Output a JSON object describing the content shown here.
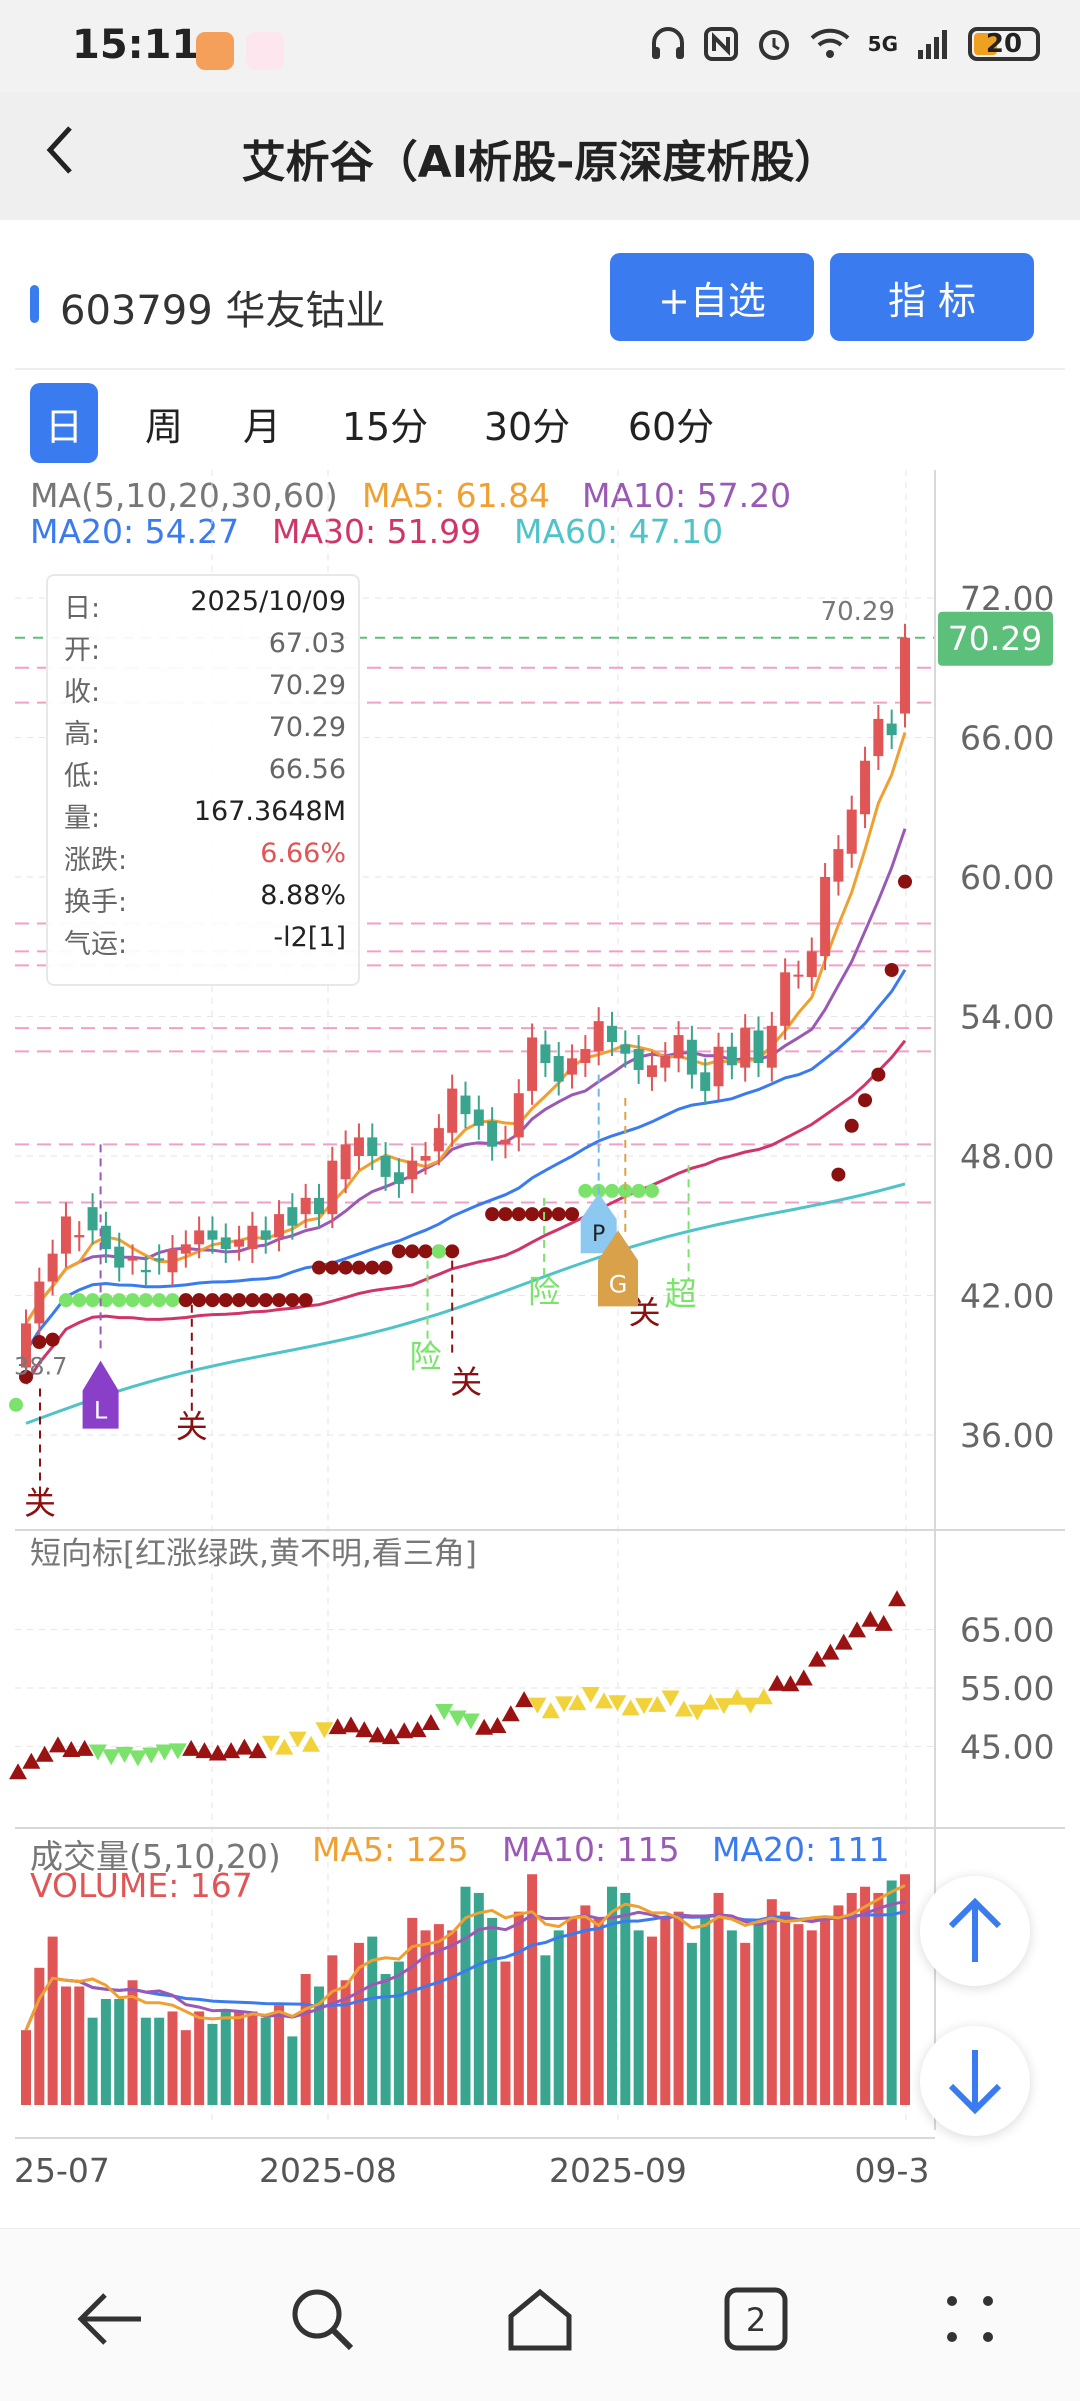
{
  "status": {
    "time": "15:11",
    "network": "5G",
    "battery": "20"
  },
  "header": {
    "back_icon": "chevron-left-icon",
    "title": "艾析谷（AI析股-原深度析股）"
  },
  "stock": {
    "code_name": "603799 华友钴业",
    "add_watch_label": "+自选",
    "indicator_label": "指  标"
  },
  "tabs": [
    {
      "label": "日",
      "active": true
    },
    {
      "label": "周"
    },
    {
      "label": "月"
    },
    {
      "label": "15分"
    },
    {
      "label": "30分"
    },
    {
      "label": "60分"
    }
  ],
  "ma_legend": {
    "title": "MA(5,10,20,30,60)",
    "ma5": "MA5: 61.84",
    "ma10": "MA10: 57.20",
    "ma20": "MA20: 54.27",
    "ma30": "MA30: 51.99",
    "ma60": "MA60: 47.10"
  },
  "tooltip": {
    "date_k": "日:",
    "date_v": "2025/10/09",
    "open_k": "开:",
    "open_v": "67.03",
    "close_k": "收:",
    "close_v": "70.29",
    "high_k": "高:",
    "high_v": "70.29",
    "low_k": "低:",
    "low_v": "66.56",
    "vol_k": "量:",
    "vol_v": "167.3648M",
    "chg_k": "涨跌:",
    "chg_v": "6.66%",
    "turn_k": "换手:",
    "turn_v": "8.88%",
    "luck_k": "气运:",
    "luck_v": "-l2[1]"
  },
  "price_axis": {
    "ticks": [
      "72.00",
      "66.00",
      "60.00",
      "54.00",
      "48.00",
      "42.00",
      "36.00"
    ],
    "last_price": "70.29",
    "last_price_label": "70.29",
    "low_label": "38.7"
  },
  "signals": {
    "guan": "关",
    "xian": "险",
    "chao": "超",
    "L": "L",
    "P": "P",
    "G": "G"
  },
  "short_panel": {
    "title": "短向标[红涨绿跌,黄不明,看三角]",
    "ticks": [
      "65.00",
      "55.00",
      "45.00"
    ]
  },
  "volume_panel": {
    "title": "成交量(5,10,20)",
    "ma5": "MA5: 125",
    "ma10": "MA10: 115",
    "ma20": "MA20: 111",
    "volume": "VOLUME: 167"
  },
  "x_axis": {
    "labels": [
      "25-07",
      "2025-08",
      "2025-09",
      "09-3"
    ]
  },
  "colors": {
    "up": "#e05555",
    "down": "#3aa58f",
    "ma5": "#f0a030",
    "ma10": "#9b59b6",
    "ma20": "#3a7bf0",
    "ma30": "#d0356a",
    "ma60": "#4fc3c8",
    "accent": "#3a7bf0",
    "last_price_bg": "#5cbf7a"
  },
  "chart_data": {
    "type": "candlestick",
    "x": [
      "2025-07-01",
      "2025-07-02",
      "2025-07-03",
      "2025-07-04",
      "2025-07-07",
      "2025-07-08",
      "2025-07-09",
      "2025-07-10",
      "2025-07-11",
      "2025-07-14",
      "2025-07-15",
      "2025-07-16",
      "2025-07-17",
      "2025-07-18",
      "2025-07-21",
      "2025-07-22",
      "2025-07-23",
      "2025-07-24",
      "2025-07-25",
      "2025-07-28",
      "2025-07-29",
      "2025-07-30",
      "2025-07-31",
      "2025-08-01",
      "2025-08-04",
      "2025-08-05",
      "2025-08-06",
      "2025-08-07",
      "2025-08-08",
      "2025-08-11",
      "2025-08-12",
      "2025-08-13",
      "2025-08-14",
      "2025-08-15",
      "2025-08-18",
      "2025-08-19",
      "2025-08-20",
      "2025-08-21",
      "2025-08-22",
      "2025-08-25",
      "2025-08-26",
      "2025-08-27",
      "2025-08-28",
      "2025-08-29",
      "2025-09-01",
      "2025-09-02",
      "2025-09-03",
      "2025-09-04",
      "2025-09-05",
      "2025-09-08",
      "2025-09-09",
      "2025-09-10",
      "2025-09-11",
      "2025-09-12",
      "2025-09-15",
      "2025-09-16",
      "2025-09-17",
      "2025-09-18",
      "2025-09-19",
      "2025-09-22",
      "2025-09-23",
      "2025-09-24",
      "2025-09-25",
      "2025-09-26",
      "2025-09-29",
      "2025-09-30",
      "2025-10-09"
    ],
    "open": [
      38.9,
      40.8,
      42.6,
      43.8,
      44.5,
      45.8,
      45.0,
      44.1,
      43.5,
      43.1,
      43.6,
      43.0,
      43.8,
      44.2,
      44.8,
      44.5,
      44.1,
      44.0,
      44.8,
      44.5,
      45.8,
      45.5,
      46.2,
      45.5,
      47.0,
      48.0,
      48.8,
      48.0,
      47.3,
      47.0,
      47.8,
      48.2,
      49.0,
      50.6,
      50.0,
      49.5,
      48.5,
      48.8,
      50.8,
      52.8,
      52.3,
      51.5,
      52.0,
      52.5,
      53.6,
      52.8,
      52.6,
      51.4,
      51.8,
      52.2,
      53.0,
      51.6,
      51.0,
      52.7,
      51.8,
      53.4,
      51.8,
      53.6,
      55.8,
      55.7,
      56.6,
      59.8,
      61.0,
      62.7,
      65.2,
      66.6,
      67.03
    ],
    "close": [
      40.8,
      42.6,
      43.8,
      45.4,
      44.6,
      44.8,
      44.0,
      43.2,
      43.6,
      43.0,
      43.5,
      44.0,
      44.2,
      44.8,
      44.4,
      44.0,
      44.4,
      45.0,
      44.4,
      45.5,
      45.0,
      46.2,
      45.5,
      47.8,
      48.5,
      48.8,
      48.0,
      47.1,
      46.8,
      47.8,
      48.0,
      49.2,
      50.9,
      49.8,
      49.3,
      48.4,
      48.7,
      50.7,
      53.1,
      52.0,
      51.2,
      52.2,
      52.6,
      53.8,
      52.9,
      52.4,
      51.7,
      51.9,
      52.3,
      53.2,
      51.5,
      50.8,
      52.7,
      51.9,
      53.5,
      52.0,
      53.6,
      55.9,
      55.8,
      56.8,
      60.0,
      61.2,
      62.9,
      65.0,
      66.8,
      66.1,
      70.29
    ]
  }
}
